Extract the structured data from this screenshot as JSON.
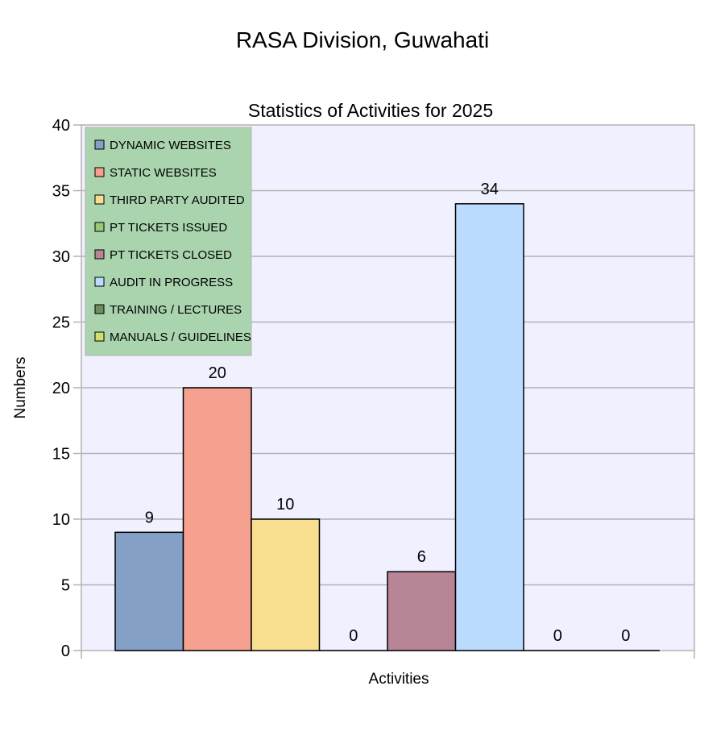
{
  "page_title": "RASA Division, Guwahati",
  "chart_data": {
    "type": "bar",
    "title": "Statistics of Activities for 2025",
    "xlabel": "Activities",
    "ylabel": "Numbers",
    "ylim": [
      0,
      40
    ],
    "yticks": [
      0,
      5,
      10,
      15,
      20,
      25,
      30,
      35,
      40
    ],
    "grid": true,
    "legend_position": "top-left",
    "plot_background": "#f0f0ff",
    "legend_background": "#a9d4ae",
    "series": [
      {
        "name": "DYNAMIC WEBSITES",
        "value": 9,
        "color": "#84a0c6"
      },
      {
        "name": "STATIC WEBSITES",
        "value": 20,
        "color": "#f6a08f"
      },
      {
        "name": "THIRD PARTY AUDITED",
        "value": 10,
        "color": "#f8df90"
      },
      {
        "name": "PT TICKETS ISSUED",
        "value": 0,
        "color": "#9cc878"
      },
      {
        "name": "PT TICKETS CLOSED",
        "value": 6,
        "color": "#b78595"
      },
      {
        "name": "AUDIT IN PROGRESS",
        "value": 34,
        "color": "#bbdcff"
      },
      {
        "name": "TRAINING / LECTURES",
        "value": 0,
        "color": "#6c8f5c"
      },
      {
        "name": "MANUALS / GUIDELINES",
        "value": 0,
        "color": "#d0e070"
      }
    ]
  }
}
